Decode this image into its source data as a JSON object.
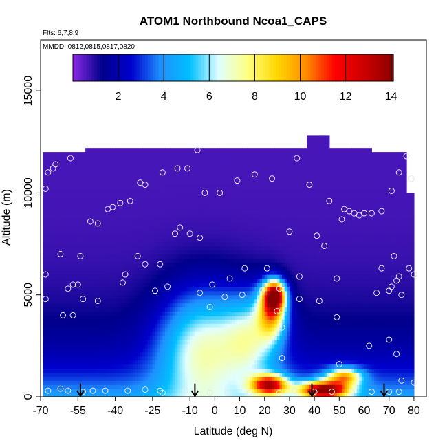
{
  "chart_data": {
    "type": "heatmap",
    "title": "ATOM1 Northbound Ncoa1_CAPS",
    "subtitle_line1": "Flts: 6,7,8,9",
    "subtitle_line2": "MMDD: 0812,0815,0817,0820",
    "xlabel": "Latitude (deg N)",
    "ylabel": "Altitude (m)",
    "xlim": [
      -70,
      85
    ],
    "ylim": [
      0,
      17500
    ],
    "x_ticks": [
      -70,
      -55,
      -40,
      -25,
      -10,
      0,
      10,
      20,
      30,
      40,
      50,
      60,
      70,
      80
    ],
    "x_tick_labels": [
      "-70",
      "-55",
      "-40",
      "-25",
      "-10",
      "0",
      "10",
      "20",
      "30",
      "40",
      "50",
      "60",
      "70",
      "80"
    ],
    "y_ticks": [
      0,
      5000,
      10000,
      15000
    ],
    "y_tick_labels": [
      "0",
      "5000",
      "10000",
      "15000"
    ],
    "colorbar": {
      "min": 0,
      "max": 14.1,
      "ticks": [
        2,
        4,
        6,
        8,
        10,
        12,
        14
      ],
      "tick_labels": [
        "2",
        "4",
        "6",
        "8",
        "10",
        "12",
        "14"
      ],
      "colors": [
        "#8a2be2",
        "#00008b",
        "#0000cd",
        "#1e90ff",
        "#00bfff",
        "#e0ffff",
        "#ffff80",
        "#ffd700",
        "#ff8c00",
        "#ff0000",
        "#cc0000",
        "#8b0000"
      ]
    },
    "grid": false,
    "flight_profiles": [
      {
        "lat_start": -69,
        "lat_end": -52,
        "alt_max": 12000
      },
      {
        "lat_start": -52,
        "lat_end": 37,
        "alt_max": 12200
      },
      {
        "lat_start": 37,
        "lat_end": 46,
        "alt_max": 12700
      },
      {
        "lat_start": 46,
        "lat_end": 63,
        "alt_max": 12200
      },
      {
        "lat_start": 63,
        "lat_end": 77,
        "alt_max": 12000
      },
      {
        "lat_start": 77,
        "lat_end": 80,
        "alt_max": 10000
      }
    ],
    "features": [
      {
        "lat": 24,
        "alt": 5000,
        "value": 12,
        "lat_sigma": 3,
        "alt_sigma": 500
      },
      {
        "lat": 23,
        "alt": 4200,
        "value": 8,
        "lat_sigma": 4,
        "alt_sigma": 900
      },
      {
        "lat": 22,
        "alt": 600,
        "value": 11,
        "lat_sigma": 5,
        "alt_sigma": 350
      },
      {
        "lat": 44,
        "alt": 350,
        "value": 13,
        "lat_sigma": 7,
        "alt_sigma": 300
      },
      {
        "lat": 52,
        "alt": 1000,
        "value": 8,
        "lat_sigma": 5,
        "alt_sigma": 300
      },
      {
        "lat": -5,
        "alt": 2500,
        "value": 6,
        "lat_sigma": 12,
        "alt_sigma": 2000
      },
      {
        "lat": 15,
        "alt": 3000,
        "value": 5,
        "lat_sigma": 8,
        "alt_sigma": 1500
      }
    ],
    "sample_points": [
      {
        "lat": -68,
        "alt": 10200
      },
      {
        "lat": -67,
        "alt": 11000
      },
      {
        "lat": -65,
        "alt": 11200
      },
      {
        "lat": -64,
        "alt": 11400
      },
      {
        "lat": -58,
        "alt": 11700
      },
      {
        "lat": -50,
        "alt": 8600
      },
      {
        "lat": -47,
        "alt": 8500
      },
      {
        "lat": -43,
        "alt": 9200
      },
      {
        "lat": -41,
        "alt": 9300
      },
      {
        "lat": -38,
        "alt": 9500
      },
      {
        "lat": -34,
        "alt": 9600
      },
      {
        "lat": -30,
        "alt": 10500
      },
      {
        "lat": -28,
        "alt": 10400
      },
      {
        "lat": -21,
        "alt": 11000
      },
      {
        "lat": -15,
        "alt": 11200
      },
      {
        "lat": -11,
        "alt": 11200
      },
      {
        "lat": -7,
        "alt": 12100
      },
      {
        "lat": -4,
        "alt": 10000
      },
      {
        "lat": 2,
        "alt": 10000
      },
      {
        "lat": 9,
        "alt": 10600
      },
      {
        "lat": 16,
        "alt": 10900
      },
      {
        "lat": 23,
        "alt": 10700
      },
      {
        "lat": 33,
        "alt": 11700
      },
      {
        "lat": 38,
        "alt": 10400
      },
      {
        "lat": 46,
        "alt": 9600
      },
      {
        "lat": 52,
        "alt": 9200
      },
      {
        "lat": 54,
        "alt": 9100
      },
      {
        "lat": 56,
        "alt": 9000
      },
      {
        "lat": 58,
        "alt": 8900
      },
      {
        "lat": 60,
        "alt": 9000
      },
      {
        "lat": 63,
        "alt": 9000
      },
      {
        "lat": 67,
        "alt": 9100
      },
      {
        "lat": 71,
        "alt": 10100
      },
      {
        "lat": 74,
        "alt": 11000
      },
      {
        "lat": 77,
        "alt": 11800
      },
      {
        "lat": 79,
        "alt": 10700
      },
      {
        "lat": 51,
        "alt": 8700
      },
      {
        "lat": -16,
        "alt": 8000
      },
      {
        "lat": -14,
        "alt": 8300
      },
      {
        "lat": -10,
        "alt": 8000
      },
      {
        "lat": -6,
        "alt": 7800
      },
      {
        "lat": 30,
        "alt": 8100
      },
      {
        "lat": 41,
        "alt": 7900
      },
      {
        "lat": 44,
        "alt": 7400
      },
      {
        "lat": -62,
        "alt": 7000
      },
      {
        "lat": -54,
        "alt": 6900
      },
      {
        "lat": -31,
        "alt": 6900
      },
      {
        "lat": -28,
        "alt": 6500
      },
      {
        "lat": -22,
        "alt": 6500
      },
      {
        "lat": 72,
        "alt": 6900
      },
      {
        "lat": 67,
        "alt": 6300
      },
      {
        "lat": -68,
        "alt": 6000
      },
      {
        "lat": -36,
        "alt": 6000
      },
      {
        "lat": 78,
        "alt": 6300
      },
      {
        "lat": -57,
        "alt": 5500
      },
      {
        "lat": -55,
        "alt": 5500
      },
      {
        "lat": -37,
        "alt": 5600
      },
      {
        "lat": -19,
        "alt": 5400
      },
      {
        "lat": -1,
        "alt": 5500
      },
      {
        "lat": 6,
        "alt": 5800
      },
      {
        "lat": 12,
        "alt": 6300
      },
      {
        "lat": 21,
        "alt": 6300
      },
      {
        "lat": 34,
        "alt": 5900
      },
      {
        "lat": 49,
        "alt": 5800
      },
      {
        "lat": 73,
        "alt": 5700
      },
      {
        "lat": 74,
        "alt": 5900
      },
      {
        "lat": 80,
        "alt": 6000
      },
      {
        "lat": 71,
        "alt": 5400
      },
      {
        "lat": 70,
        "alt": 5200
      },
      {
        "lat": -59,
        "alt": 5300
      },
      {
        "lat": -24,
        "alt": 5200
      },
      {
        "lat": -6,
        "alt": 5100
      },
      {
        "lat": 4,
        "alt": 4900
      },
      {
        "lat": 11,
        "alt": 5000
      },
      {
        "lat": 19,
        "alt": 5200
      },
      {
        "lat": 26,
        "alt": 5300
      },
      {
        "lat": 34,
        "alt": 4800
      },
      {
        "lat": 42,
        "alt": 4700
      },
      {
        "lat": 65,
        "alt": 5100
      },
      {
        "lat": 75,
        "alt": 5000
      },
      {
        "lat": -68,
        "alt": 4800
      },
      {
        "lat": -53,
        "alt": 4800
      },
      {
        "lat": -47,
        "alt": 4700
      },
      {
        "lat": -2,
        "alt": 4400
      },
      {
        "lat": 25,
        "alt": 4200
      },
      {
        "lat": -61,
        "alt": 4000
      },
      {
        "lat": -57,
        "alt": 4000
      },
      {
        "lat": 27,
        "alt": 3400
      },
      {
        "lat": 49,
        "alt": 3900
      },
      {
        "lat": 70,
        "alt": 2800
      },
      {
        "lat": 62,
        "alt": 2500
      },
      {
        "lat": 73,
        "alt": 2100
      },
      {
        "lat": 27,
        "alt": 1900
      },
      {
        "lat": 50,
        "alt": 1600
      },
      {
        "lat": 75,
        "alt": 800
      },
      {
        "lat": 80,
        "alt": 700
      },
      {
        "lat": -67,
        "alt": 300
      },
      {
        "lat": -62,
        "alt": 400
      },
      {
        "lat": -59,
        "alt": 300
      },
      {
        "lat": -53,
        "alt": 250
      },
      {
        "lat": -49,
        "alt": 300
      },
      {
        "lat": -44,
        "alt": 300
      },
      {
        "lat": -35,
        "alt": 300
      },
      {
        "lat": -28,
        "alt": 350
      },
      {
        "lat": -22,
        "alt": 300
      },
      {
        "lat": -21,
        "alt": 200
      },
      {
        "lat": -12,
        "alt": 300
      },
      {
        "lat": -2,
        "alt": 200
      },
      {
        "lat": 5,
        "alt": 200
      },
      {
        "lat": 14,
        "alt": 200
      },
      {
        "lat": 26,
        "alt": 200
      },
      {
        "lat": 32,
        "alt": 300
      },
      {
        "lat": 40,
        "alt": 250
      },
      {
        "lat": 47,
        "alt": 250
      },
      {
        "lat": 55,
        "alt": 250
      },
      {
        "lat": 63,
        "alt": 250
      },
      {
        "lat": 70,
        "alt": 250
      },
      {
        "lat": 74,
        "alt": 250
      }
    ],
    "arrows": [
      {
        "lat": -54,
        "alt_top": 650,
        "alt_bottom": 0
      },
      {
        "lat": -8,
        "alt_top": 650,
        "alt_bottom": 0
      },
      {
        "lat": 39,
        "alt_top": 650,
        "alt_bottom": 0
      },
      {
        "lat": 68,
        "alt_top": 650,
        "alt_bottom": 0
      }
    ]
  }
}
